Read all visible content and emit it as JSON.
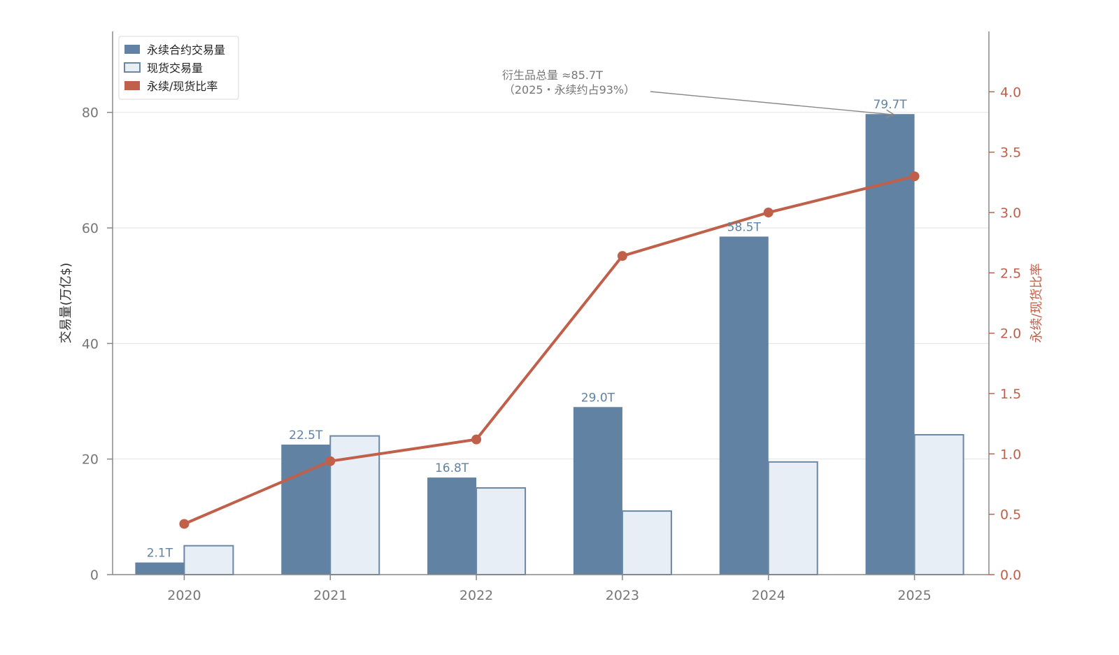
{
  "chart_data": {
    "type": "bar",
    "categories": [
      "2020",
      "2021",
      "2022",
      "2023",
      "2024",
      "2025"
    ],
    "series": [
      {
        "name": "永续合约交易量",
        "kind": "bar",
        "axis": "left",
        "values": [
          2.1,
          22.5,
          16.8,
          29.0,
          58.5,
          79.7
        ],
        "data_labels": [
          "2.1T",
          "22.5T",
          "16.8T",
          "29.0T",
          "58.5T",
          "79.7T"
        ]
      },
      {
        "name": "现货交易量",
        "kind": "bar",
        "axis": "left",
        "values": [
          5.0,
          24.0,
          15.0,
          11.0,
          19.5,
          24.2
        ]
      },
      {
        "name": "永续/现货比率",
        "kind": "line",
        "axis": "right",
        "values": [
          0.42,
          0.94,
          1.12,
          2.64,
          3.0,
          3.3
        ]
      }
    ],
    "ylabel": "交易量(万亿$)",
    "ylabel_right": "永续/现货比率",
    "xlabel": "",
    "ylim": [
      0,
      94
    ],
    "ylim_right": [
      0,
      4.5
    ],
    "yticks": [
      "0",
      "20",
      "40",
      "60",
      "80"
    ],
    "yticks_right": [
      "0.0",
      "0.5",
      "1.0",
      "1.5",
      "2.0",
      "2.5",
      "3.0",
      "3.5",
      "4.0"
    ],
    "grid": true,
    "legend_position": "top-left",
    "annotation": {
      "lines": [
        "衍生品总量 ≈85.7T",
        "（2025・永续约占93%）"
      ],
      "target_category": "2025",
      "target_value": 79.7
    },
    "colors": {
      "perp_bar": "#6182a3",
      "spot_fill": "#e8eef6",
      "spot_edge": "#6a87a6",
      "ratio_line": "#c0604a",
      "data_label": "#6182a3",
      "right_axis": "#c0604a",
      "axis": "#888888",
      "grid": "#e3e3e3"
    }
  }
}
